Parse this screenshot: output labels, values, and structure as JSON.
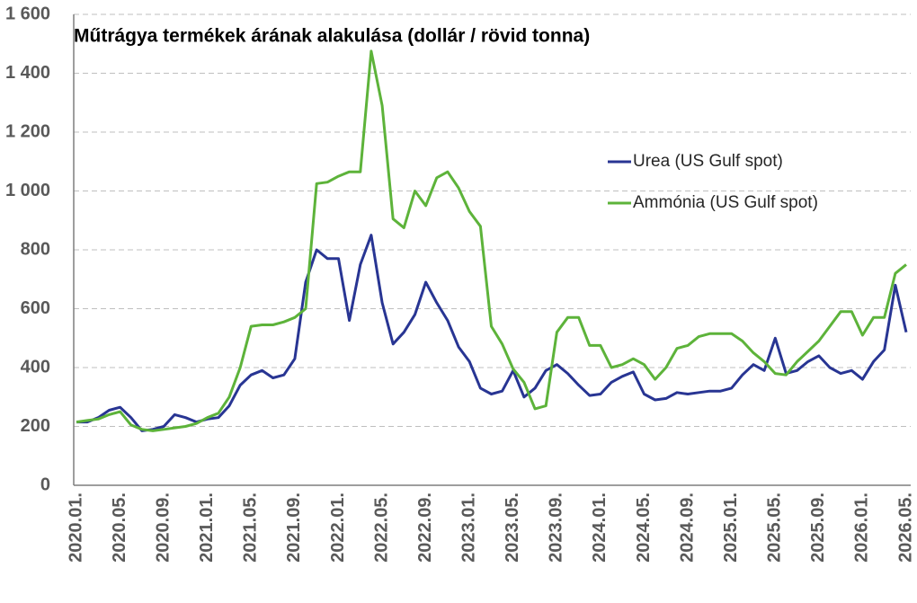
{
  "chart_data": {
    "type": "line",
    "title": "Műtrágya termékek árának alakulása (dollár / rövid tonna)",
    "categories": [
      "2020.01.",
      null,
      null,
      null,
      "2020.05.",
      null,
      null,
      null,
      "2020.09.",
      null,
      null,
      null,
      "2021.01.",
      null,
      null,
      null,
      "2021.05.",
      null,
      null,
      null,
      "2021.09.",
      null,
      null,
      null,
      "2022.01.",
      null,
      null,
      null,
      "2022.05.",
      null,
      null,
      null,
      "2022.09.",
      null,
      null,
      null,
      "2023.01.",
      null,
      null,
      null,
      "2023.05.",
      null,
      null,
      null,
      "2023.09.",
      null,
      null,
      null,
      "2024.01.",
      null,
      null,
      null,
      "2024.05.",
      null,
      null,
      null,
      "2024.09.",
      null,
      null,
      null,
      "2025.01.",
      null,
      null,
      null,
      "2025.05.",
      null,
      null,
      null,
      "2025.09.",
      null,
      null,
      null,
      "2026.01.",
      null,
      null,
      null,
      "2026.05."
    ],
    "series": [
      {
        "name": "Urea (US Gulf spot)",
        "color": "#283593",
        "values": [
          215,
          215,
          230,
          255,
          265,
          230,
          185,
          190,
          200,
          240,
          230,
          215,
          225,
          230,
          270,
          340,
          375,
          390,
          365,
          375,
          430,
          690,
          800,
          770,
          770,
          560,
          750,
          850,
          620,
          480,
          520,
          580,
          690,
          620,
          560,
          470,
          420,
          330,
          310,
          320,
          390,
          300,
          330,
          390,
          410,
          380,
          340,
          305,
          310,
          350,
          370,
          385,
          310,
          290,
          295,
          315,
          310,
          315,
          320,
          320,
          330,
          375,
          410,
          390,
          500,
          380,
          390,
          420,
          440,
          400,
          380,
          390,
          360,
          420,
          460,
          680,
          520
        ]
      },
      {
        "name": "Ammónia (US Gulf spot)",
        "color": "#5db33a",
        "values": [
          215,
          220,
          225,
          240,
          250,
          205,
          190,
          185,
          190,
          195,
          200,
          210,
          230,
          245,
          300,
          400,
          540,
          545,
          545,
          555,
          570,
          600,
          1025,
          1030,
          1050,
          1065,
          1065,
          1475,
          1290,
          905,
          875,
          1000,
          950,
          1045,
          1065,
          1010,
          930,
          880,
          540,
          480,
          395,
          350,
          260,
          270,
          520,
          570,
          570,
          475,
          475,
          400,
          410,
          430,
          410,
          360,
          400,
          465,
          475,
          505,
          515,
          515,
          515,
          490,
          450,
          420,
          380,
          375,
          420,
          455,
          490,
          540,
          590,
          590,
          510,
          570,
          570,
          720,
          750
        ]
      }
    ],
    "ylim": [
      0,
      1600
    ],
    "yticks": [
      0,
      200,
      400,
      600,
      800,
      {
        "value": 1000,
        "label": "1 000"
      },
      {
        "value": 1200,
        "label": "1 200"
      },
      {
        "value": 1400,
        "label": "1 400"
      },
      {
        "value": 1600,
        "label": "1 600"
      }
    ],
    "grid": true
  }
}
